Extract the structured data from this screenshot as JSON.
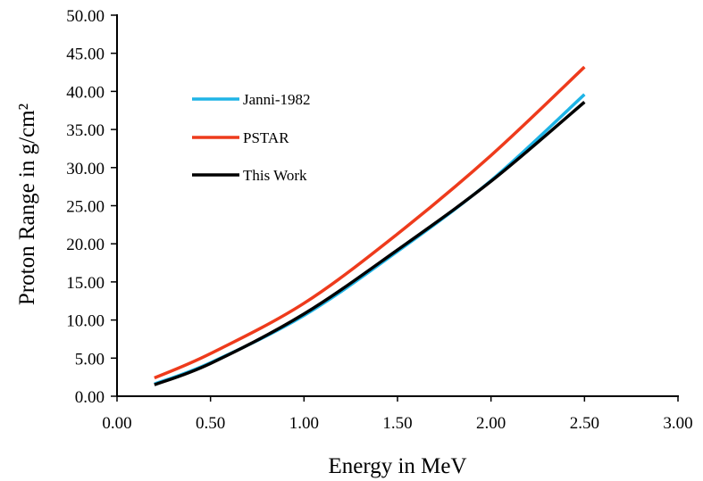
{
  "chart_data": {
    "type": "line",
    "title": "",
    "xlabel": "Energy in MeV",
    "ylabel": "Proton Range in g/cm²",
    "xlim": [
      0,
      3
    ],
    "ylim": [
      0,
      50
    ],
    "xticks": [
      "0.00",
      "0.50",
      "1.00",
      "1.50",
      "2.00",
      "2.50",
      "3.00"
    ],
    "yticks": [
      "0.00",
      "5.00",
      "10.00",
      "15.00",
      "20.00",
      "25.00",
      "30.00",
      "35.00",
      "40.00",
      "45.00",
      "50.00"
    ],
    "grid": false,
    "legend_position": "upper-left",
    "x": [
      0.2,
      0.5,
      1.0,
      1.5,
      2.0,
      2.5
    ],
    "series": [
      {
        "name": "Janni-1982",
        "color": "#1fb4e6",
        "values": [
          1.6,
          4.4,
          10.6,
          19.0,
          28.3,
          39.6
        ]
      },
      {
        "name": "PSTAR",
        "color": "#ee3b1c",
        "values": [
          2.4,
          5.6,
          12.2,
          21.3,
          31.6,
          43.2
        ]
      },
      {
        "name": "This Work",
        "color": "#000000",
        "values": [
          1.5,
          4.3,
          10.8,
          19.2,
          28.2,
          38.6
        ]
      }
    ]
  }
}
